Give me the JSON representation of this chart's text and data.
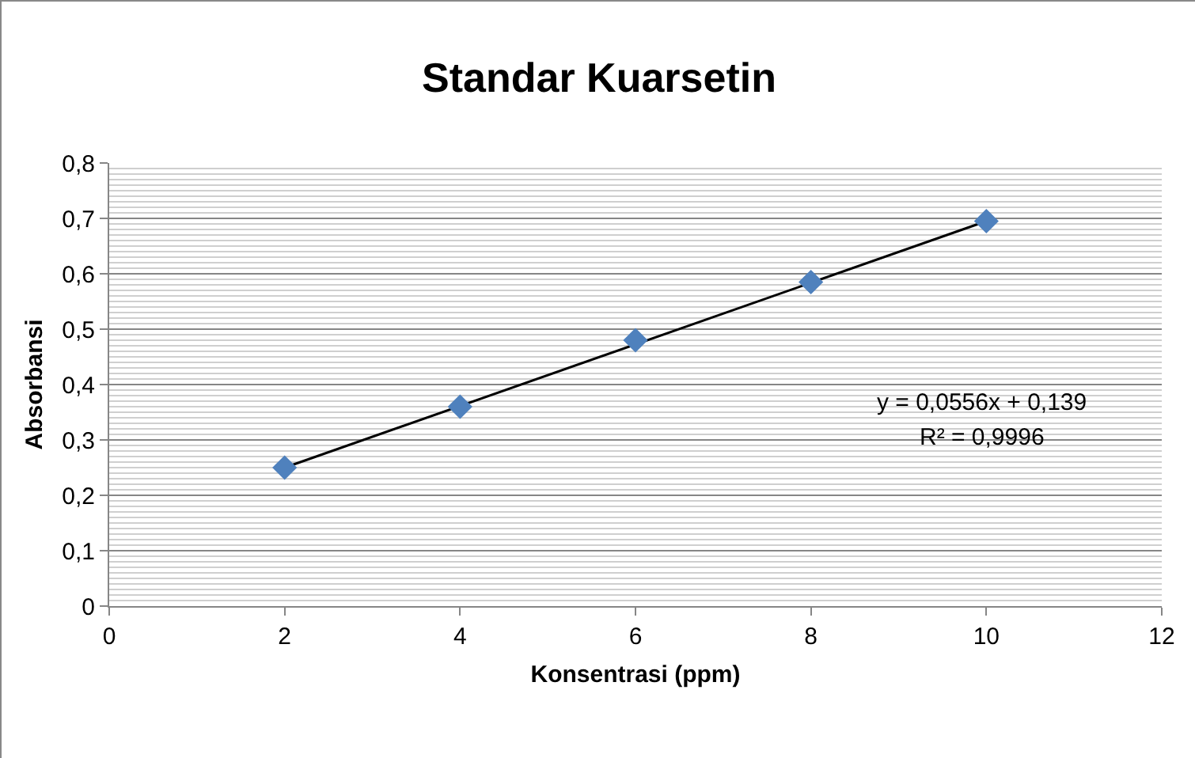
{
  "chart_data": {
    "type": "scatter",
    "title": "Standar Kuarsetin",
    "xlabel": "Konsentrasi (ppm)",
    "ylabel": "Absorbansi",
    "x": [
      2,
      4,
      6,
      8,
      10
    ],
    "series": [
      {
        "color": "#4f81bd",
        "marker": "diamond",
        "values": [
          0.25,
          0.36,
          0.48,
          0.585,
          0.695
        ]
      },
      {
        "type": "line",
        "color": "#000000",
        "marker": "none",
        "x": [
          2,
          10
        ],
        "values": [
          0.25,
          0.695
        ]
      }
    ],
    "annotations": [
      "y = 0,0556x + 0,139",
      "R² = 0,9996"
    ],
    "xlim": [
      0,
      12
    ],
    "xticks": [
      0,
      2,
      4,
      6,
      8,
      10,
      12
    ],
    "ylim": [
      0,
      0.8
    ],
    "yticks": [
      0,
      {
        "value": 0.1,
        "label": "0,1"
      },
      {
        "value": 0.2,
        "label": "0,2"
      },
      {
        "value": 0.3,
        "label": "0,3"
      },
      {
        "value": 0.4,
        "label": "0,4"
      },
      {
        "value": 0.5,
        "label": "0,5"
      },
      {
        "value": 0.6,
        "label": "0,6"
      },
      {
        "value": 0.7,
        "label": "0,7"
      },
      {
        "value": 0.8,
        "label": "0,8"
      }
    ],
    "grid": "y"
  }
}
